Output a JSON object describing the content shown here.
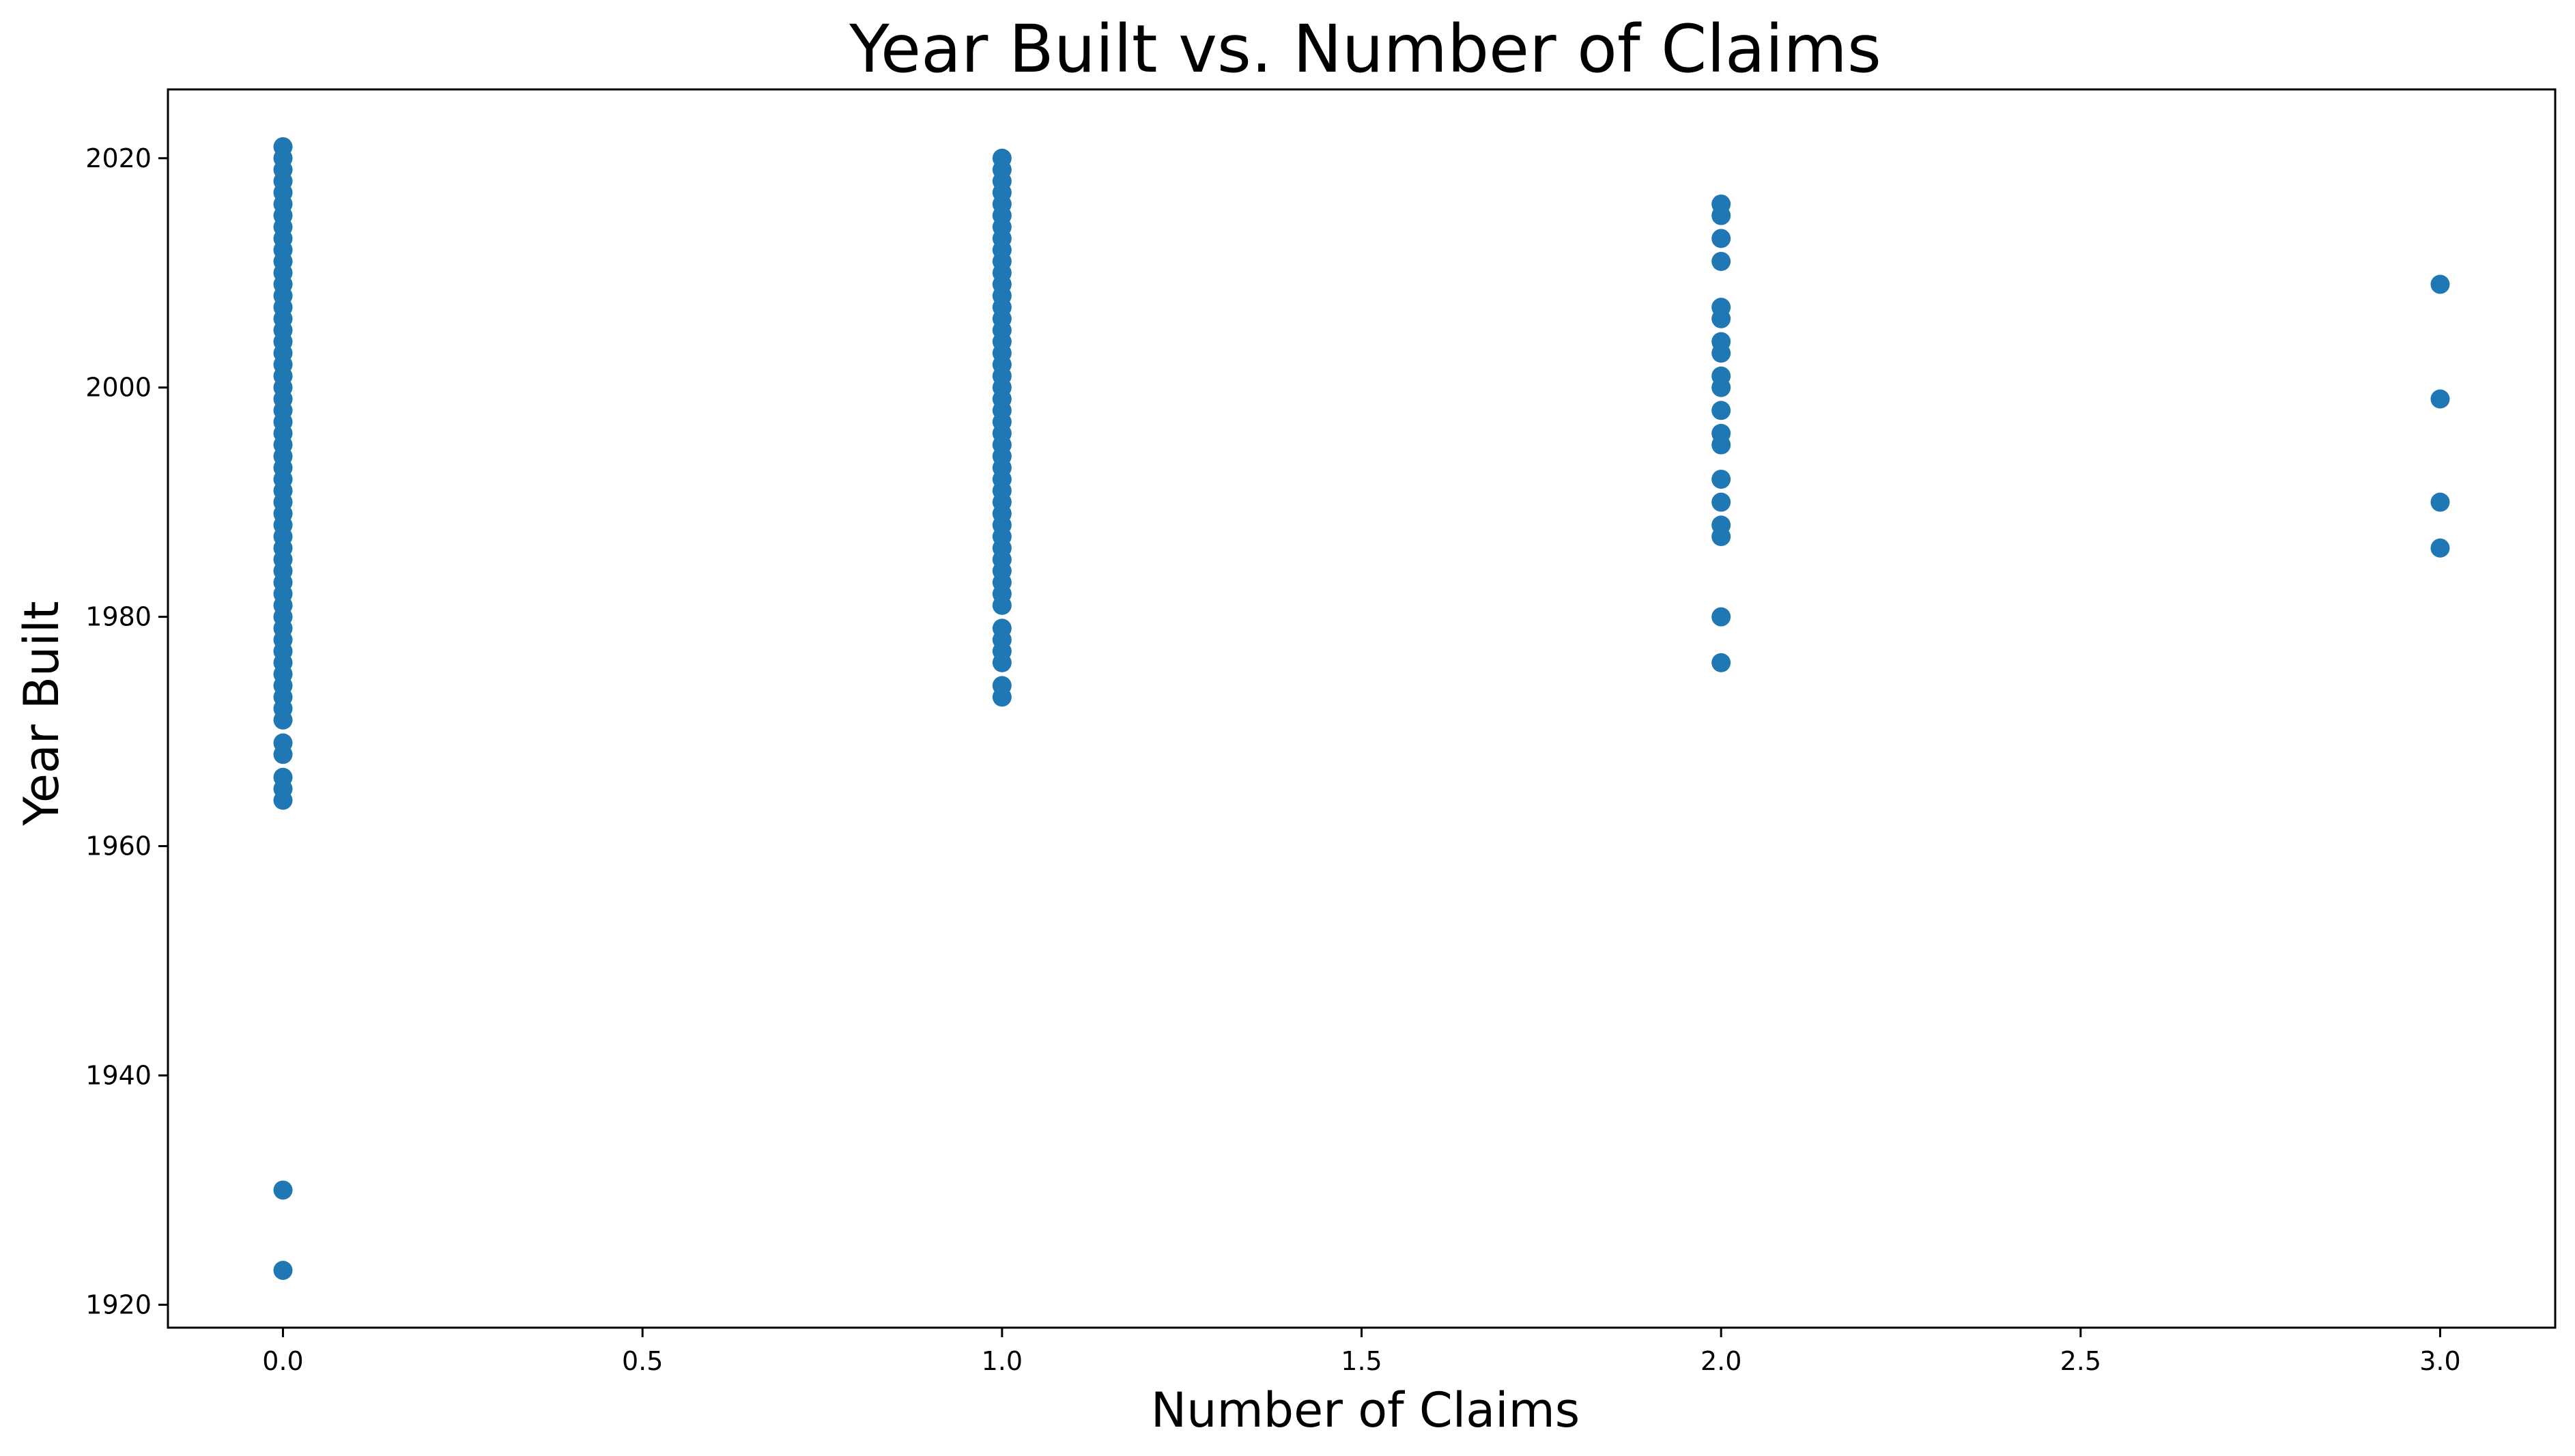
{
  "chart_data": {
    "type": "scatter",
    "title": "Year Built vs. Number of Claims",
    "xlabel": "Number of Claims",
    "ylabel": "Year Built",
    "xlim": [
      -0.16,
      3.16
    ],
    "ylim": [
      1918,
      2026
    ],
    "x_ticks": [
      0.0,
      0.5,
      1.0,
      1.5,
      2.0,
      2.5,
      3.0
    ],
    "x_tick_labels": [
      "0.0",
      "0.5",
      "1.0",
      "1.5",
      "2.0",
      "2.5",
      "3.0"
    ],
    "y_ticks": [
      1920,
      1940,
      1960,
      1980,
      2000,
      2020
    ],
    "y_tick_labels": [
      "1920",
      "1940",
      "1960",
      "1980",
      "2000",
      "2020"
    ],
    "grid": false,
    "legend": "none",
    "marker_color": "#1f77b4",
    "series": [
      {
        "points": [
          {
            "x": 0,
            "y": 1923
          },
          {
            "x": 0,
            "y": 1930
          },
          {
            "x": 0,
            "y": 1964
          },
          {
            "x": 0,
            "y": 1965
          },
          {
            "x": 0,
            "y": 1966
          },
          {
            "x": 0,
            "y": 1968
          },
          {
            "x": 0,
            "y": 1969
          },
          {
            "x": 0,
            "y": 1971
          },
          {
            "x": 0,
            "y": 1972
          },
          {
            "x": 0,
            "y": 1973
          },
          {
            "x": 0,
            "y": 1974
          },
          {
            "x": 0,
            "y": 1975
          },
          {
            "x": 0,
            "y": 1976
          },
          {
            "x": 0,
            "y": 1977
          },
          {
            "x": 0,
            "y": 1978
          },
          {
            "x": 0,
            "y": 1979
          },
          {
            "x": 0,
            "y": 1980
          },
          {
            "x": 0,
            "y": 1981
          },
          {
            "x": 0,
            "y": 1982
          },
          {
            "x": 0,
            "y": 1983
          },
          {
            "x": 0,
            "y": 1984
          },
          {
            "x": 0,
            "y": 1985
          },
          {
            "x": 0,
            "y": 1986
          },
          {
            "x": 0,
            "y": 1987
          },
          {
            "x": 0,
            "y": 1988
          },
          {
            "x": 0,
            "y": 1989
          },
          {
            "x": 0,
            "y": 1990
          },
          {
            "x": 0,
            "y": 1991
          },
          {
            "x": 0,
            "y": 1992
          },
          {
            "x": 0,
            "y": 1993
          },
          {
            "x": 0,
            "y": 1994
          },
          {
            "x": 0,
            "y": 1995
          },
          {
            "x": 0,
            "y": 1996
          },
          {
            "x": 0,
            "y": 1997
          },
          {
            "x": 0,
            "y": 1998
          },
          {
            "x": 0,
            "y": 1999
          },
          {
            "x": 0,
            "y": 2000
          },
          {
            "x": 0,
            "y": 2001
          },
          {
            "x": 0,
            "y": 2002
          },
          {
            "x": 0,
            "y": 2003
          },
          {
            "x": 0,
            "y": 2004
          },
          {
            "x": 0,
            "y": 2005
          },
          {
            "x": 0,
            "y": 2006
          },
          {
            "x": 0,
            "y": 2007
          },
          {
            "x": 0,
            "y": 2008
          },
          {
            "x": 0,
            "y": 2009
          },
          {
            "x": 0,
            "y": 2010
          },
          {
            "x": 0,
            "y": 2011
          },
          {
            "x": 0,
            "y": 2012
          },
          {
            "x": 0,
            "y": 2013
          },
          {
            "x": 0,
            "y": 2014
          },
          {
            "x": 0,
            "y": 2015
          },
          {
            "x": 0,
            "y": 2016
          },
          {
            "x": 0,
            "y": 2017
          },
          {
            "x": 0,
            "y": 2018
          },
          {
            "x": 0,
            "y": 2019
          },
          {
            "x": 0,
            "y": 2020
          },
          {
            "x": 0,
            "y": 2021
          },
          {
            "x": 1,
            "y": 1973
          },
          {
            "x": 1,
            "y": 1974
          },
          {
            "x": 1,
            "y": 1976
          },
          {
            "x": 1,
            "y": 1977
          },
          {
            "x": 1,
            "y": 1978
          },
          {
            "x": 1,
            "y": 1979
          },
          {
            "x": 1,
            "y": 1981
          },
          {
            "x": 1,
            "y": 1982
          },
          {
            "x": 1,
            "y": 1983
          },
          {
            "x": 1,
            "y": 1984
          },
          {
            "x": 1,
            "y": 1985
          },
          {
            "x": 1,
            "y": 1986
          },
          {
            "x": 1,
            "y": 1987
          },
          {
            "x": 1,
            "y": 1988
          },
          {
            "x": 1,
            "y": 1989
          },
          {
            "x": 1,
            "y": 1990
          },
          {
            "x": 1,
            "y": 1991
          },
          {
            "x": 1,
            "y": 1992
          },
          {
            "x": 1,
            "y": 1993
          },
          {
            "x": 1,
            "y": 1994
          },
          {
            "x": 1,
            "y": 1995
          },
          {
            "x": 1,
            "y": 1996
          },
          {
            "x": 1,
            "y": 1997
          },
          {
            "x": 1,
            "y": 1998
          },
          {
            "x": 1,
            "y": 1999
          },
          {
            "x": 1,
            "y": 2000
          },
          {
            "x": 1,
            "y": 2001
          },
          {
            "x": 1,
            "y": 2002
          },
          {
            "x": 1,
            "y": 2003
          },
          {
            "x": 1,
            "y": 2004
          },
          {
            "x": 1,
            "y": 2005
          },
          {
            "x": 1,
            "y": 2006
          },
          {
            "x": 1,
            "y": 2007
          },
          {
            "x": 1,
            "y": 2008
          },
          {
            "x": 1,
            "y": 2009
          },
          {
            "x": 1,
            "y": 2010
          },
          {
            "x": 1,
            "y": 2011
          },
          {
            "x": 1,
            "y": 2012
          },
          {
            "x": 1,
            "y": 2013
          },
          {
            "x": 1,
            "y": 2014
          },
          {
            "x": 1,
            "y": 2015
          },
          {
            "x": 1,
            "y": 2016
          },
          {
            "x": 1,
            "y": 2017
          },
          {
            "x": 1,
            "y": 2018
          },
          {
            "x": 1,
            "y": 2019
          },
          {
            "x": 1,
            "y": 2020
          },
          {
            "x": 2,
            "y": 1976
          },
          {
            "x": 2,
            "y": 1980
          },
          {
            "x": 2,
            "y": 1987
          },
          {
            "x": 2,
            "y": 1988
          },
          {
            "x": 2,
            "y": 1990
          },
          {
            "x": 2,
            "y": 1992
          },
          {
            "x": 2,
            "y": 1995
          },
          {
            "x": 2,
            "y": 1996
          },
          {
            "x": 2,
            "y": 1998
          },
          {
            "x": 2,
            "y": 2000
          },
          {
            "x": 2,
            "y": 2001
          },
          {
            "x": 2,
            "y": 2003
          },
          {
            "x": 2,
            "y": 2004
          },
          {
            "x": 2,
            "y": 2006
          },
          {
            "x": 2,
            "y": 2007
          },
          {
            "x": 2,
            "y": 2011
          },
          {
            "x": 2,
            "y": 2013
          },
          {
            "x": 2,
            "y": 2015
          },
          {
            "x": 2,
            "y": 2016
          },
          {
            "x": 3,
            "y": 1986
          },
          {
            "x": 3,
            "y": 1990
          },
          {
            "x": 3,
            "y": 1999
          },
          {
            "x": 3,
            "y": 2009
          }
        ]
      }
    ]
  }
}
